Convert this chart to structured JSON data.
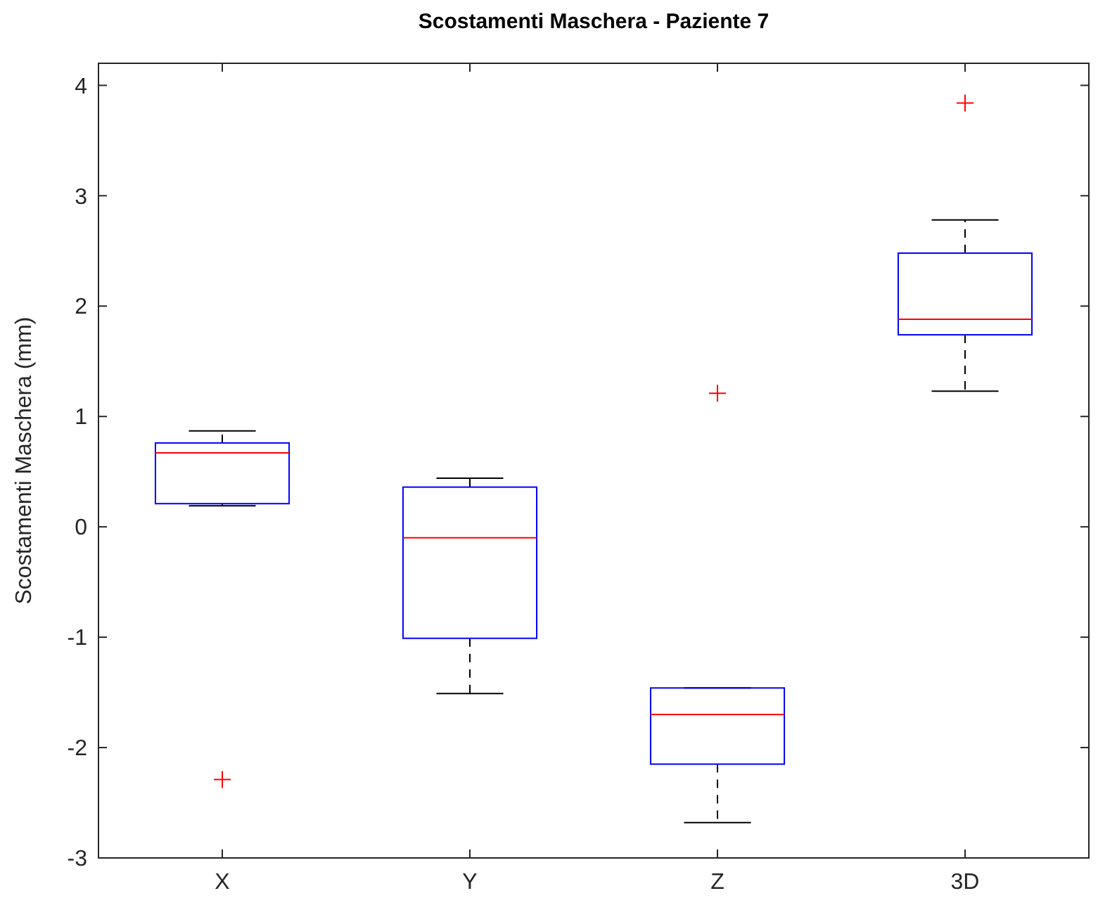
{
  "chart_data": {
    "type": "box",
    "title": "Scostamenti Maschera - Paziente 7",
    "ylabel": "Scostamenti Maschera (mm)",
    "categories": [
      "X",
      "Y",
      "Z",
      "3D"
    ],
    "color": "#0000ff",
    "ylim": [
      -3,
      4.2
    ],
    "yticks": [
      -3,
      -2,
      -1,
      0,
      1,
      2,
      3,
      4
    ],
    "boxes": [
      {
        "low": 0.19,
        "q1": 0.21,
        "median": 0.67,
        "q3": 0.76,
        "high": 0.87,
        "outliers": [
          -2.29
        ]
      },
      {
        "low": -1.51,
        "q1": -1.01,
        "median": -0.1,
        "q3": 0.36,
        "high": 0.44
      },
      {
        "low": -2.68,
        "q1": -2.15,
        "median": -1.7,
        "q3": -1.46,
        "high": -1.46,
        "outliers": [
          1.21
        ]
      },
      {
        "low": 1.23,
        "q1": 1.74,
        "median": 1.88,
        "q3": 2.48,
        "high": 2.78,
        "outliers": [
          3.84
        ]
      }
    ]
  }
}
